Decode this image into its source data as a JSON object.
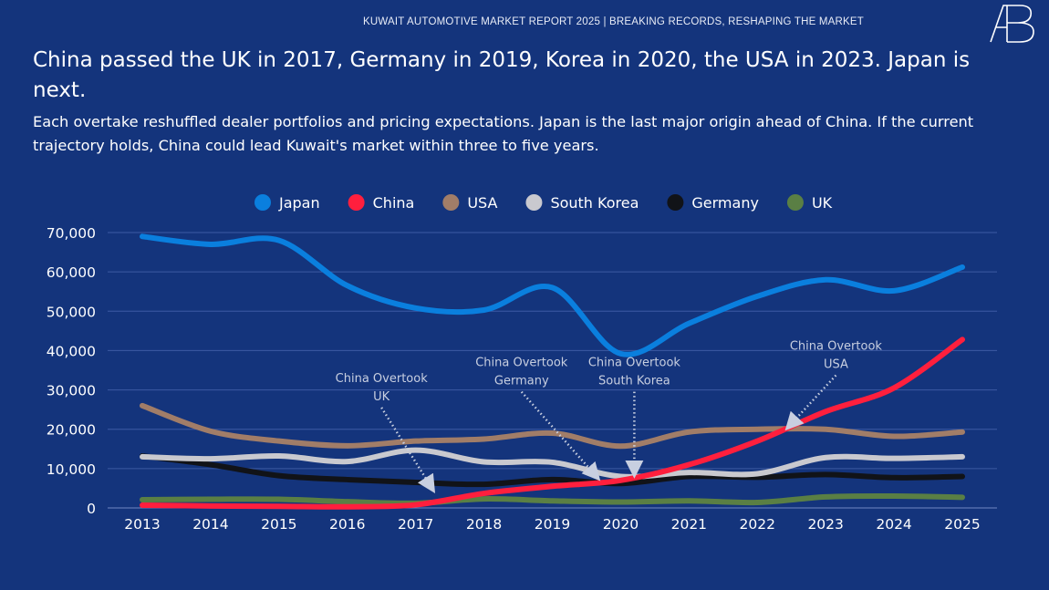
{
  "header": {
    "report_title": "KUWAIT AUTOMOTIVE MARKET REPORT 2025 | BREAKING RECORDS, RESHAPING THE MARKET",
    "logo_text": "AB"
  },
  "title": "China passed the UK in 2017, Germany in 2019, Korea in 2020, the USA in 2023. Japan is next.",
  "subtitle": "Each overtake reshuffled dealer portfolios and pricing expectations. Japan is the last major origin ahead of China. If the current trajectory holds, China could lead Kuwait's market within three to five years.",
  "chart_data": {
    "type": "line",
    "x": [
      2013,
      2014,
      2015,
      2016,
      2017,
      2018,
      2019,
      2020,
      2021,
      2022,
      2023,
      2024,
      2025
    ],
    "xticks": [
      "2013",
      "2014",
      "2015",
      "2016",
      "2017",
      "2018",
      "2019",
      "2020",
      "2021",
      "2022",
      "2023",
      "2024",
      "2025"
    ],
    "yticks": [
      "0",
      "10,000",
      "20,000",
      "30,000",
      "40,000",
      "50,000",
      "60,000",
      "70,000"
    ],
    "ylim": [
      0,
      70000
    ],
    "grid": "horizontal",
    "legend_position": "top",
    "smooth": true,
    "series": [
      {
        "name": "Japan",
        "color": "#0a7fde",
        "values": [
          69000,
          67000,
          68000,
          56500,
          50800,
          50300,
          56000,
          39200,
          46900,
          53800,
          58000,
          55200,
          61200
        ]
      },
      {
        "name": "China",
        "color": "#ff1f3d",
        "values": [
          700,
          500,
          400,
          300,
          800,
          3700,
          5500,
          7000,
          11000,
          17000,
          24500,
          30500,
          42800
        ]
      },
      {
        "name": "USA",
        "color": "#a17d68",
        "values": [
          26000,
          19500,
          17000,
          15800,
          17000,
          17500,
          19000,
          15700,
          19300,
          20000,
          20000,
          18200,
          19300
        ]
      },
      {
        "name": "South Korea",
        "color": "#c9c9cf",
        "values": [
          13000,
          12500,
          13200,
          11800,
          14700,
          11700,
          11600,
          8000,
          9000,
          8700,
          12800,
          12600,
          13000
        ]
      },
      {
        "name": "Germany",
        "color": "#111318",
        "values": [
          13200,
          11000,
          8200,
          7200,
          6500,
          6000,
          7200,
          6200,
          8000,
          7800,
          8500,
          7700,
          8000
        ]
      },
      {
        "name": "UK",
        "color": "#5a7f44",
        "values": [
          2100,
          2200,
          2200,
          1600,
          1200,
          2300,
          1800,
          1500,
          1800,
          1400,
          2800,
          3000,
          2700
        ]
      }
    ],
    "annotations": [
      {
        "lines": [
          "China Overtook",
          "UK"
        ],
        "text_x": 2016.5,
        "text_y": 32000,
        "target_x": 2017.25,
        "target_y": 4700
      },
      {
        "lines": [
          "China Overtook",
          "Germany"
        ],
        "text_x": 2018.55,
        "text_y": 36000,
        "target_x": 2019.66,
        "target_y": 7700
      },
      {
        "lines": [
          "China Overtook",
          "South Korea"
        ],
        "text_x": 2020.2,
        "text_y": 36000,
        "target_x": 2020.2,
        "target_y": 8600
      },
      {
        "lines": [
          "China Overtook",
          "USA"
        ],
        "text_x": 2023.15,
        "text_y": 40200,
        "target_x": 2022.45,
        "target_y": 20500
      }
    ]
  }
}
